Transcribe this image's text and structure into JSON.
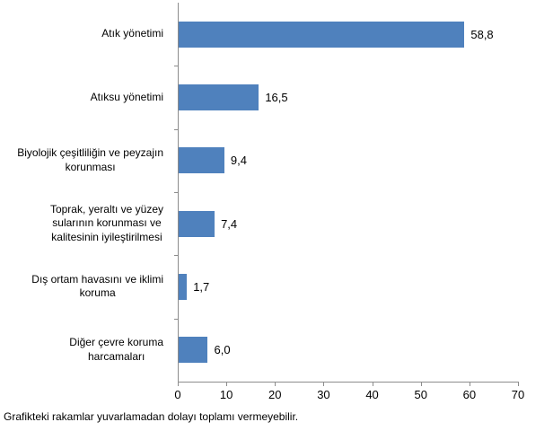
{
  "chart_data": {
    "type": "bar",
    "orientation": "horizontal",
    "title": "",
    "xlabel": "",
    "ylabel": "",
    "xlim": [
      0,
      70
    ],
    "x_ticks": [
      0,
      10,
      20,
      30,
      40,
      50,
      60,
      70
    ],
    "grid": false,
    "legend": false,
    "bar_color": "#4F81BD",
    "axis_color": "#8C8C8C",
    "categories": [
      "Atık yönetimi",
      "Atıksu yönetimi",
      "Biyolojik çeşitliliğin ve peyzajın\nkorunması",
      "Toprak, yeraltı ve yüzey\nsularının korunması ve\nkalitesinin iyileştirilmesi",
      "Dış ortam havasını ve iklimi\nkoruma",
      "Diğer çevre koruma\nharcamaları"
    ],
    "values": [
      58.8,
      16.5,
      9.4,
      7.4,
      1.7,
      6.0
    ],
    "value_labels": [
      "58,8",
      "16,5",
      "9,4",
      "7,4",
      "1,7",
      "6,0"
    ]
  },
  "footnote": "Grafikteki rakamlar yuvarlamadan dolayı toplamı vermeyebilir."
}
